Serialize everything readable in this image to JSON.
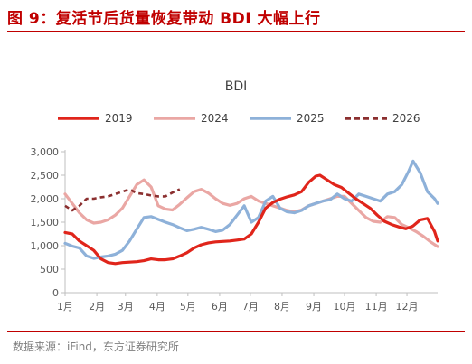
{
  "figure": {
    "title": "图 9：复活节后货量恢复带动 BDI 大幅上行",
    "source": "数据来源：iFind，东方证券研究所"
  },
  "chart_data": {
    "type": "line",
    "title": "BDI",
    "xlabel": "",
    "ylabel": "",
    "ylim": [
      0,
      3000
    ],
    "yticks": [
      "0",
      "500",
      "1,000",
      "1,500",
      "2,000",
      "2,500",
      "3,000"
    ],
    "x_ticks": [
      "1月",
      "2月",
      "3月",
      "4月",
      "5月",
      "6月",
      "7月",
      "8月",
      "9月",
      "10月",
      "11月",
      "12月"
    ],
    "x_unit": "day_of_year",
    "legend_position": "top",
    "grid": false,
    "series": [
      {
        "name": "2019",
        "color": "#e0251b",
        "style": "solid",
        "points": [
          [
            1,
            1280
          ],
          [
            8,
            1250
          ],
          [
            15,
            1100
          ],
          [
            22,
            1000
          ],
          [
            29,
            900
          ],
          [
            36,
            720
          ],
          [
            43,
            640
          ],
          [
            50,
            620
          ],
          [
            57,
            640
          ],
          [
            64,
            650
          ],
          [
            71,
            660
          ],
          [
            78,
            680
          ],
          [
            85,
            720
          ],
          [
            92,
            700
          ],
          [
            99,
            700
          ],
          [
            106,
            720
          ],
          [
            113,
            780
          ],
          [
            120,
            850
          ],
          [
            127,
            950
          ],
          [
            134,
            1020
          ],
          [
            141,
            1060
          ],
          [
            148,
            1080
          ],
          [
            155,
            1090
          ],
          [
            162,
            1100
          ],
          [
            169,
            1120
          ],
          [
            176,
            1140
          ],
          [
            183,
            1250
          ],
          [
            190,
            1500
          ],
          [
            197,
            1800
          ],
          [
            204,
            1920
          ],
          [
            211,
            1990
          ],
          [
            218,
            2040
          ],
          [
            225,
            2080
          ],
          [
            232,
            2150
          ],
          [
            239,
            2350
          ],
          [
            246,
            2480
          ],
          [
            250,
            2500
          ],
          [
            257,
            2400
          ],
          [
            264,
            2300
          ],
          [
            271,
            2240
          ],
          [
            278,
            2120
          ],
          [
            285,
            2000
          ],
          [
            292,
            1900
          ],
          [
            299,
            1800
          ],
          [
            306,
            1650
          ],
          [
            313,
            1520
          ],
          [
            320,
            1450
          ],
          [
            327,
            1400
          ],
          [
            334,
            1360
          ],
          [
            341,
            1420
          ],
          [
            348,
            1550
          ],
          [
            355,
            1580
          ],
          [
            362,
            1300
          ],
          [
            365,
            1100
          ]
        ]
      },
      {
        "name": "2024",
        "color": "#eaa7a4",
        "style": "solid",
        "points": [
          [
            1,
            2100
          ],
          [
            8,
            1900
          ],
          [
            15,
            1700
          ],
          [
            22,
            1550
          ],
          [
            29,
            1480
          ],
          [
            36,
            1500
          ],
          [
            43,
            1550
          ],
          [
            50,
            1650
          ],
          [
            57,
            1800
          ],
          [
            64,
            2050
          ],
          [
            71,
            2300
          ],
          [
            78,
            2400
          ],
          [
            85,
            2250
          ],
          [
            92,
            1850
          ],
          [
            99,
            1780
          ],
          [
            106,
            1760
          ],
          [
            113,
            1880
          ],
          [
            120,
            2020
          ],
          [
            127,
            2150
          ],
          [
            134,
            2200
          ],
          [
            141,
            2120
          ],
          [
            148,
            2000
          ],
          [
            155,
            1900
          ],
          [
            162,
            1860
          ],
          [
            169,
            1900
          ],
          [
            176,
            2000
          ],
          [
            183,
            2050
          ],
          [
            190,
            1950
          ],
          [
            197,
            1900
          ],
          [
            204,
            1850
          ],
          [
            211,
            1800
          ],
          [
            218,
            1750
          ],
          [
            225,
            1720
          ],
          [
            232,
            1760
          ],
          [
            239,
            1850
          ],
          [
            246,
            1900
          ],
          [
            253,
            1950
          ],
          [
            260,
            2000
          ],
          [
            267,
            2050
          ],
          [
            274,
            2050
          ],
          [
            281,
            1900
          ],
          [
            288,
            1750
          ],
          [
            295,
            1600
          ],
          [
            302,
            1520
          ],
          [
            309,
            1500
          ],
          [
            316,
            1620
          ],
          [
            323,
            1600
          ],
          [
            330,
            1450
          ],
          [
            337,
            1380
          ],
          [
            344,
            1300
          ],
          [
            351,
            1200
          ],
          [
            358,
            1080
          ],
          [
            365,
            980
          ]
        ]
      },
      {
        "name": "2025",
        "color": "#8eb1d9",
        "style": "solid",
        "points": [
          [
            1,
            1050
          ],
          [
            8,
            990
          ],
          [
            15,
            950
          ],
          [
            22,
            780
          ],
          [
            29,
            730
          ],
          [
            36,
            760
          ],
          [
            43,
            780
          ],
          [
            50,
            820
          ],
          [
            57,
            900
          ],
          [
            64,
            1100
          ],
          [
            71,
            1350
          ],
          [
            78,
            1600
          ],
          [
            85,
            1620
          ],
          [
            92,
            1560
          ],
          [
            99,
            1500
          ],
          [
            106,
            1450
          ],
          [
            113,
            1380
          ],
          [
            120,
            1320
          ],
          [
            127,
            1350
          ],
          [
            134,
            1390
          ],
          [
            141,
            1350
          ],
          [
            148,
            1300
          ],
          [
            155,
            1330
          ],
          [
            162,
            1450
          ],
          [
            169,
            1650
          ],
          [
            176,
            1850
          ],
          [
            183,
            1500
          ],
          [
            190,
            1600
          ],
          [
            197,
            1950
          ],
          [
            204,
            2050
          ],
          [
            211,
            1800
          ],
          [
            218,
            1720
          ],
          [
            225,
            1700
          ],
          [
            232,
            1750
          ],
          [
            239,
            1850
          ],
          [
            246,
            1900
          ],
          [
            253,
            1950
          ],
          [
            260,
            1980
          ],
          [
            267,
            2100
          ],
          [
            274,
            2000
          ],
          [
            281,
            1950
          ],
          [
            288,
            2100
          ],
          [
            295,
            2050
          ],
          [
            302,
            2000
          ],
          [
            309,
            1950
          ],
          [
            316,
            2100
          ],
          [
            323,
            2150
          ],
          [
            330,
            2300
          ],
          [
            337,
            2600
          ],
          [
            341,
            2800
          ],
          [
            348,
            2550
          ],
          [
            355,
            2150
          ],
          [
            362,
            2000
          ],
          [
            365,
            1900
          ]
        ]
      },
      {
        "name": "2026",
        "color": "#8b2f2f",
        "style": "dashed",
        "points": [
          [
            1,
            1850
          ],
          [
            8,
            1750
          ],
          [
            15,
            1850
          ],
          [
            22,
            2000
          ],
          [
            29,
            2000
          ],
          [
            36,
            2030
          ],
          [
            43,
            2050
          ],
          [
            50,
            2100
          ],
          [
            57,
            2150
          ],
          [
            64,
            2200
          ],
          [
            71,
            2120
          ],
          [
            78,
            2100
          ],
          [
            85,
            2070
          ],
          [
            92,
            2050
          ],
          [
            99,
            2050
          ],
          [
            106,
            2130
          ],
          [
            113,
            2200
          ]
        ]
      }
    ]
  }
}
